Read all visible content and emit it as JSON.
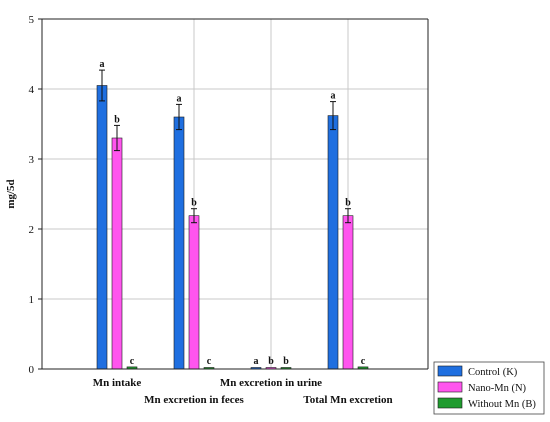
{
  "chart_data": {
    "type": "bar",
    "ylabel": "mg/5d",
    "xlabel": "",
    "ylim": [
      0,
      5
    ],
    "yticks": [
      0,
      1,
      2,
      3,
      4,
      5
    ],
    "grid": true,
    "legend_position": "bottom-right",
    "categories": [
      "Mn intake",
      "Mn excretion in feces",
      "Mn excretion in urine",
      "Total Mn excretion"
    ],
    "series": [
      {
        "name": "Control (K)",
        "color": "#1f6fe0",
        "values": [
          4.05,
          3.6,
          0.02,
          3.62
        ],
        "errors": [
          0.22,
          0.18,
          0.005,
          0.2
        ],
        "letters": [
          "a",
          "a",
          "a",
          "a"
        ]
      },
      {
        "name": "Nano-Mn (N)",
        "color": "#ff55ee",
        "values": [
          3.3,
          2.19,
          0.01,
          2.19
        ],
        "errors": [
          0.18,
          0.1,
          0.005,
          0.1
        ],
        "letters": [
          "b",
          "b",
          "b",
          "b"
        ]
      },
      {
        "name": "Without Mn (B)",
        "color": "#1f9b2e",
        "values": [
          0.03,
          0.02,
          0.005,
          0.03
        ],
        "errors": [
          0.01,
          0.01,
          0.002,
          0.01
        ],
        "letters": [
          "c",
          "c",
          "b",
          "c"
        ]
      }
    ]
  }
}
